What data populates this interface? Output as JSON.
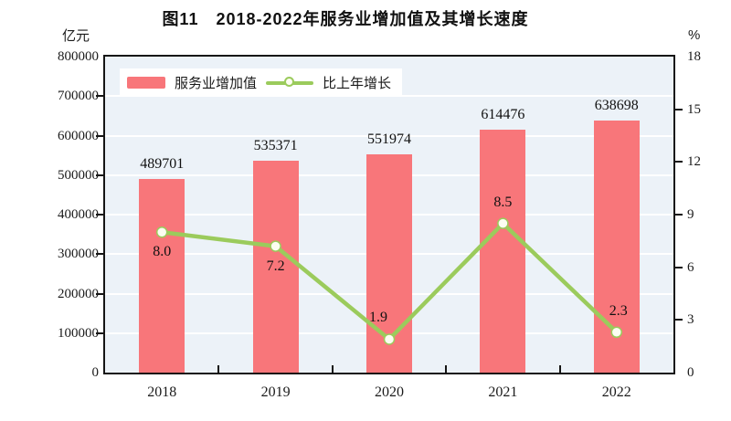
{
  "page_title": "图11　2018-2022年服务业增加值及其增长速度",
  "chart_data": {
    "type": "bar",
    "title": "图11　2018-2022年服务业增加值及其增长速度",
    "categories": [
      "2018",
      "2019",
      "2020",
      "2021",
      "2022"
    ],
    "series": [
      {
        "name": "服务业增加值",
        "render": "bar",
        "axis": "left",
        "values": [
          489701,
          535371,
          551974,
          614476,
          638698
        ],
        "labels": [
          "489701",
          "535371",
          "551974",
          "614476",
          "638698"
        ],
        "color": "#F8767A"
      },
      {
        "name": "比上年增长",
        "render": "line",
        "axis": "right",
        "values": [
          8.0,
          7.2,
          1.9,
          8.5,
          2.3
        ],
        "labels": [
          "8.0",
          "7.2",
          "1.9",
          "8.5",
          "2.3"
        ],
        "color": "#9BCB5C",
        "marker_fill": "#FDFDF2",
        "label_placement": [
          "below",
          "below",
          "above",
          "above",
          "above"
        ],
        "label_dx": [
          0,
          0,
          -12,
          0,
          2
        ]
      }
    ],
    "left_axis": {
      "unit": "亿元",
      "min": 0,
      "max": 800000,
      "step": 100000,
      "tick_labels": [
        "0",
        "100000",
        "200000",
        "300000",
        "400000",
        "500000",
        "600000",
        "700000",
        "800000"
      ]
    },
    "right_axis": {
      "unit": "%",
      "min": 0,
      "max": 18,
      "step": 3,
      "tick_labels": [
        "0",
        "3",
        "6",
        "9",
        "12",
        "15",
        "18"
      ]
    },
    "grid": true,
    "gridline_color": "#FFFFFF",
    "plot_background": "#ECF2F8",
    "axis_color": "#151515",
    "legend_position": "top-left-inside"
  }
}
